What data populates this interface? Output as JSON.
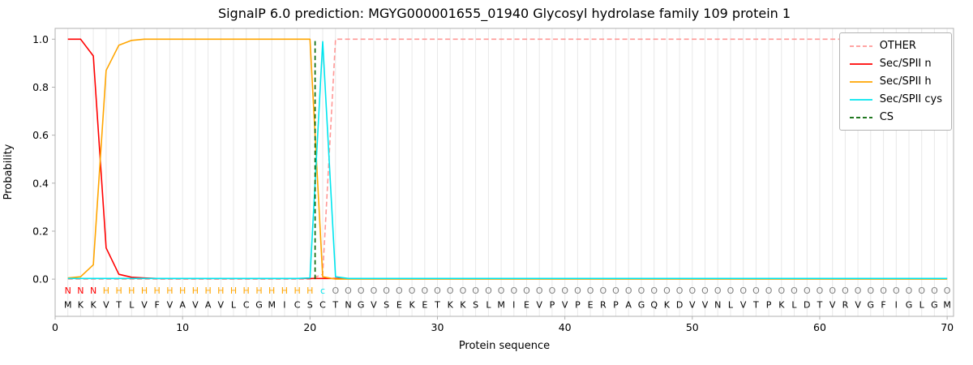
{
  "chart_data": {
    "type": "line",
    "title": "SignalP 6.0 prediction: MGYG000001655_01940 Glycosyl hydrolase family 109 protein 1",
    "xlabel": "Protein sequence",
    "ylabel": "Probability",
    "xlim": [
      0,
      70.5
    ],
    "ylim": [
      -0.155,
      1.045
    ],
    "xticks": [
      0,
      10,
      20,
      30,
      40,
      50,
      60,
      70
    ],
    "yticks": [
      0.0,
      0.2,
      0.4,
      0.6,
      0.8,
      1.0
    ],
    "ytick_labels": [
      "0.0",
      "0.2",
      "0.4",
      "0.6",
      "0.8",
      "1.0"
    ],
    "grid_color": "#e8e8e8",
    "axis_color": "#b0b0b0",
    "text_color": "#000000",
    "sequence_color": "#000000",
    "sequence": "MKKVTLVFVAVAVLCGMICSCTNGVSEKETKKSLMIEVPVPERPAGQKDVVNLVTPKLDTVRVGFIGLGM",
    "region_annotation": "NNNHHHHHHHHHHHHHHHHHcOOOOOOOOOOOOOOOOOOOOOOOOOOOOOOOOOOOOOOOOOOOOOOOOO",
    "annotation_colors": {
      "N": "#ff0000",
      "H": "#ffa500",
      "c": "#00e5ee",
      "O": "#808080"
    },
    "series": [
      {
        "name": "OTHER",
        "color": "#ff9896",
        "style": "dashed",
        "values": [
          0,
          0,
          0,
          0,
          0,
          0,
          0,
          0,
          0,
          0,
          0,
          0,
          0,
          0,
          0,
          0,
          0,
          0,
          0,
          0,
          0.02,
          1,
          1,
          1,
          1,
          1,
          1,
          1,
          1,
          1,
          1,
          1,
          1,
          1,
          1,
          1,
          1,
          1,
          1,
          1,
          1,
          1,
          1,
          1,
          1,
          1,
          1,
          1,
          1,
          1,
          1,
          1,
          1,
          1,
          1,
          1,
          1,
          1,
          1,
          1,
          1,
          1,
          1,
          1,
          1,
          1,
          1,
          1,
          1,
          1
        ]
      },
      {
        "name": "Sec/SPII n",
        "color": "#ff0000",
        "style": "solid",
        "values": [
          1.0,
          1.0,
          0.93,
          0.13,
          0.02,
          0.008,
          0.005,
          0.003,
          0.003,
          0.003,
          0.003,
          0.003,
          0.003,
          0.003,
          0.003,
          0.003,
          0.003,
          0.003,
          0.003,
          0.003,
          0.003,
          0.003,
          0.003,
          0.003,
          0.003,
          0.003,
          0.003,
          0.003,
          0.003,
          0.003,
          0.003,
          0.003,
          0.003,
          0.003,
          0.003,
          0.003,
          0.003,
          0.003,
          0.003,
          0.003,
          0.003,
          0.003,
          0.003,
          0.003,
          0.003,
          0.003,
          0.003,
          0.003,
          0.003,
          0.003,
          0.003,
          0.003,
          0.003,
          0.003,
          0.003,
          0.003,
          0.003,
          0.003,
          0.003,
          0.003,
          0.003,
          0.003,
          0.003,
          0.003,
          0.003,
          0.003,
          0.003,
          0.003,
          0.003,
          0.003
        ]
      },
      {
        "name": "Sec/SPII h",
        "color": "#ffa500",
        "style": "solid",
        "values": [
          0.005,
          0.01,
          0.06,
          0.87,
          0.975,
          0.995,
          1.0,
          1.0,
          1.0,
          1.0,
          1.0,
          1.0,
          1.0,
          1.0,
          1.0,
          1.0,
          1.0,
          1.0,
          1.0,
          1.0,
          0.01,
          0,
          0,
          0,
          0,
          0,
          0,
          0,
          0,
          0,
          0,
          0,
          0,
          0,
          0,
          0,
          0,
          0,
          0,
          0,
          0,
          0,
          0,
          0,
          0,
          0,
          0,
          0,
          0,
          0,
          0,
          0,
          0,
          0,
          0,
          0,
          0,
          0,
          0,
          0,
          0,
          0,
          0,
          0,
          0,
          0,
          0,
          0,
          0,
          0
        ]
      },
      {
        "name": "Sec/SPII cys",
        "color": "#00e5ee",
        "style": "solid",
        "values": [
          0.003,
          0.003,
          0.003,
          0.003,
          0.003,
          0.003,
          0.003,
          0.003,
          0.003,
          0.003,
          0.003,
          0.003,
          0.003,
          0.003,
          0.003,
          0.003,
          0.003,
          0.003,
          0.003,
          0.005,
          0.99,
          0.01,
          0.003,
          0.003,
          0.003,
          0.003,
          0.003,
          0.003,
          0.003,
          0.003,
          0.003,
          0.003,
          0.003,
          0.003,
          0.003,
          0.003,
          0.003,
          0.003,
          0.003,
          0.003,
          0.003,
          0.003,
          0.003,
          0.003,
          0.003,
          0.003,
          0.003,
          0.003,
          0.003,
          0.003,
          0.003,
          0.003,
          0.003,
          0.003,
          0.003,
          0.003,
          0.003,
          0.003,
          0.003,
          0.003,
          0.003,
          0.003,
          0.003,
          0.003,
          0.003,
          0.003,
          0.003,
          0.003,
          0.003,
          0.003
        ]
      }
    ],
    "cs_marker": {
      "name": "CS",
      "x": 20.4,
      "color": "#006400",
      "style": "dashed"
    },
    "legend": {
      "position": "upper right",
      "entries": [
        "OTHER",
        "Sec/SPII n",
        "Sec/SPII h",
        "Sec/SPII cys",
        "CS"
      ]
    }
  }
}
